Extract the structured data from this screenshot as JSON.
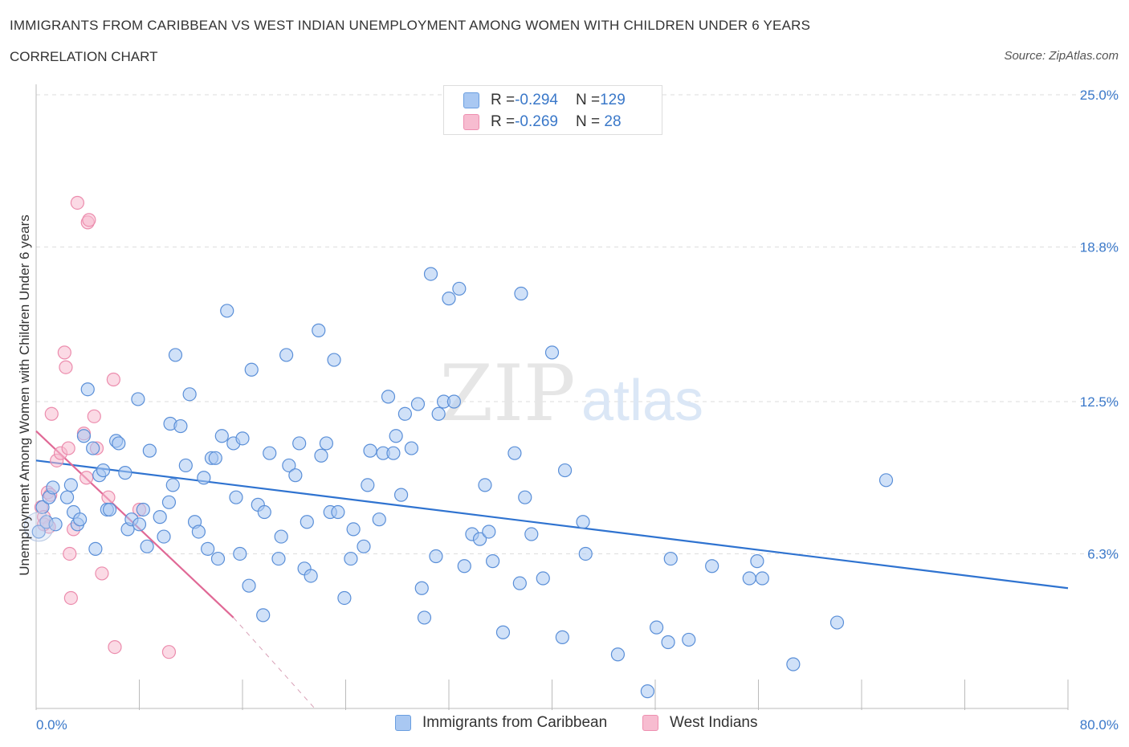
{
  "header": {
    "title": "IMMIGRANTS FROM CARIBBEAN VS WEST INDIAN UNEMPLOYMENT AMONG WOMEN WITH CHILDREN UNDER 6 YEARS",
    "subtitle": "CORRELATION CHART",
    "source": "Source: ZipAtlas.com"
  },
  "watermark": {
    "zip": "ZIP",
    "atlas": "atlas"
  },
  "legend": {
    "rows": [
      {
        "r_label": "R = ",
        "r_value": "-0.294",
        "n_label": "N = ",
        "n_value": "129",
        "color": "#a9c8f2",
        "border": "#6a9ee0"
      },
      {
        "r_label": "R = ",
        "r_value": "-0.269",
        "n_label": "N = ",
        "n_value": " 28",
        "color": "#f7bcd0",
        "border": "#ee8fb0"
      }
    ]
  },
  "bottom_legend": {
    "items": [
      {
        "label": "Immigrants from Caribbean",
        "color": "#a9c8f2",
        "border": "#6a9ee0"
      },
      {
        "label": "West Indians",
        "color": "#f7bcd0",
        "border": "#ee8fb0"
      }
    ]
  },
  "chart_data": {
    "type": "scatter",
    "title": "IMMIGRANTS FROM CARIBBEAN VS WEST INDIAN UNEMPLOYMENT AMONG WOMEN WITH CHILDREN UNDER 6 YEARS",
    "xlabel": "",
    "ylabel": "Unemployment Among Women with Children Under 6 years",
    "xlim": [
      0,
      80
    ],
    "ylim": [
      0,
      25
    ],
    "x_tick_labels": [
      "0.0%",
      "80.0%"
    ],
    "y_ticks": [
      6.3,
      12.5,
      18.8,
      25.0
    ],
    "y_tick_labels": [
      "6.3%",
      "12.5%",
      "18.8%",
      "25.0%"
    ],
    "grid": "horizontal dashed",
    "legend_position": "top-center",
    "series": [
      {
        "name": "Immigrants from Caribbean",
        "color": "#a9c8f2",
        "edge": "#5a8fd8",
        "trend": {
          "x": [
            0,
            80
          ],
          "y": [
            10.1,
            4.9
          ],
          "color": "#2f73d0"
        },
        "points": [
          [
            0.2,
            7.2
          ],
          [
            0.5,
            8.2
          ],
          [
            0.8,
            7.6
          ],
          [
            1.0,
            8.6
          ],
          [
            1.3,
            9.0
          ],
          [
            1.5,
            7.5
          ],
          [
            2.4,
            8.6
          ],
          [
            2.7,
            9.1
          ],
          [
            2.9,
            8.0
          ],
          [
            3.2,
            7.5
          ],
          [
            3.4,
            7.7
          ],
          [
            3.7,
            11.1
          ],
          [
            4.0,
            13.0
          ],
          [
            4.4,
            10.6
          ],
          [
            4.6,
            6.5
          ],
          [
            4.9,
            9.5
          ],
          [
            5.2,
            9.7
          ],
          [
            5.5,
            8.1
          ],
          [
            5.7,
            8.1
          ],
          [
            6.2,
            10.9
          ],
          [
            6.4,
            10.8
          ],
          [
            6.9,
            9.6
          ],
          [
            7.1,
            7.3
          ],
          [
            7.4,
            7.7
          ],
          [
            7.9,
            12.6
          ],
          [
            8.3,
            8.1
          ],
          [
            8.6,
            6.6
          ],
          [
            8.8,
            10.5
          ],
          [
            8.0,
            7.5
          ],
          [
            9.6,
            7.8
          ],
          [
            9.9,
            7.0
          ],
          [
            10.3,
            8.4
          ],
          [
            10.4,
            11.6
          ],
          [
            10.6,
            9.1
          ],
          [
            10.8,
            14.4
          ],
          [
            11.2,
            11.5
          ],
          [
            11.6,
            9.9
          ],
          [
            11.9,
            12.8
          ],
          [
            12.3,
            7.6
          ],
          [
            12.6,
            7.2
          ],
          [
            13.0,
            9.4
          ],
          [
            13.3,
            6.5
          ],
          [
            13.6,
            10.2
          ],
          [
            13.9,
            10.2
          ],
          [
            14.1,
            6.1
          ],
          [
            14.4,
            11.1
          ],
          [
            14.8,
            16.2
          ],
          [
            15.3,
            10.8
          ],
          [
            15.5,
            8.6
          ],
          [
            15.8,
            6.3
          ],
          [
            16.0,
            11.0
          ],
          [
            16.5,
            5.0
          ],
          [
            16.7,
            13.8
          ],
          [
            17.2,
            8.3
          ],
          [
            17.6,
            3.8
          ],
          [
            17.7,
            8.0
          ],
          [
            18.1,
            10.4
          ],
          [
            18.8,
            6.1
          ],
          [
            19.0,
            7.0
          ],
          [
            19.4,
            14.4
          ],
          [
            19.6,
            9.9
          ],
          [
            20.1,
            9.5
          ],
          [
            20.4,
            10.8
          ],
          [
            20.8,
            5.7
          ],
          [
            21.0,
            7.6
          ],
          [
            21.3,
            5.4
          ],
          [
            21.9,
            15.4
          ],
          [
            22.1,
            10.3
          ],
          [
            22.5,
            10.8
          ],
          [
            22.8,
            8.0
          ],
          [
            23.1,
            14.2
          ],
          [
            23.4,
            8.0
          ],
          [
            23.9,
            4.5
          ],
          [
            24.4,
            6.1
          ],
          [
            24.6,
            7.3
          ],
          [
            25.4,
            6.6
          ],
          [
            25.7,
            9.1
          ],
          [
            25.9,
            10.5
          ],
          [
            26.6,
            7.7
          ],
          [
            26.9,
            10.4
          ],
          [
            27.3,
            12.7
          ],
          [
            27.7,
            10.4
          ],
          [
            27.9,
            11.1
          ],
          [
            28.3,
            8.7
          ],
          [
            28.6,
            12.0
          ],
          [
            29.1,
            10.6
          ],
          [
            29.6,
            12.4
          ],
          [
            29.9,
            4.9
          ],
          [
            30.1,
            3.7
          ],
          [
            30.6,
            17.7
          ],
          [
            31.0,
            6.2
          ],
          [
            31.2,
            12.0
          ],
          [
            31.6,
            12.5
          ],
          [
            32.0,
            16.7
          ],
          [
            32.4,
            12.5
          ],
          [
            32.8,
            17.1
          ],
          [
            33.2,
            5.8
          ],
          [
            33.8,
            7.1
          ],
          [
            34.4,
            6.9
          ],
          [
            34.8,
            9.1
          ],
          [
            35.1,
            7.2
          ],
          [
            35.4,
            6.0
          ],
          [
            36.2,
            3.1
          ],
          [
            37.1,
            10.4
          ],
          [
            37.5,
            5.1
          ],
          [
            37.6,
            16.9
          ],
          [
            37.9,
            8.6
          ],
          [
            38.4,
            7.1
          ],
          [
            39.3,
            5.3
          ],
          [
            40.0,
            14.5
          ],
          [
            40.8,
            2.9
          ],
          [
            41.0,
            9.7
          ],
          [
            42.4,
            7.6
          ],
          [
            42.6,
            6.3
          ],
          [
            45.1,
            2.2
          ],
          [
            47.4,
            0.7
          ],
          [
            48.1,
            3.3
          ],
          [
            49.0,
            2.7
          ],
          [
            49.2,
            6.1
          ],
          [
            50.6,
            2.8
          ],
          [
            52.4,
            5.8
          ],
          [
            55.3,
            5.3
          ],
          [
            55.9,
            6.0
          ],
          [
            56.3,
            5.3
          ],
          [
            58.7,
            1.8
          ],
          [
            62.1,
            3.5
          ],
          [
            65.9,
            9.3
          ]
        ]
      },
      {
        "name": "West Indians",
        "color": "#f7bcd0",
        "edge": "#ec8cad",
        "trend": {
          "x": [
            0,
            15.3
          ],
          "y": [
            11.3,
            3.7
          ],
          "extend_to": [
            21.6,
            0
          ],
          "color": "#e06996"
        },
        "points": [
          [
            0.4,
            8.2
          ],
          [
            0.6,
            7.8
          ],
          [
            0.9,
            8.8
          ],
          [
            1.0,
            7.4
          ],
          [
            1.2,
            12.0
          ],
          [
            1.6,
            10.1
          ],
          [
            1.9,
            10.4
          ],
          [
            2.2,
            14.5
          ],
          [
            2.3,
            13.9
          ],
          [
            2.5,
            10.6
          ],
          [
            2.6,
            6.3
          ],
          [
            2.7,
            4.5
          ],
          [
            2.9,
            7.3
          ],
          [
            3.2,
            20.6
          ],
          [
            3.7,
            11.2
          ],
          [
            3.9,
            9.4
          ],
          [
            4.0,
            19.8
          ],
          [
            4.1,
            19.9
          ],
          [
            4.5,
            11.9
          ],
          [
            4.7,
            10.6
          ],
          [
            5.1,
            5.5
          ],
          [
            5.6,
            8.6
          ],
          [
            6.0,
            13.4
          ],
          [
            6.1,
            2.5
          ],
          [
            8.0,
            8.1
          ],
          [
            10.3,
            2.3
          ],
          [
            0.6,
            7.5
          ],
          [
            1.1,
            8.7
          ]
        ]
      }
    ]
  }
}
